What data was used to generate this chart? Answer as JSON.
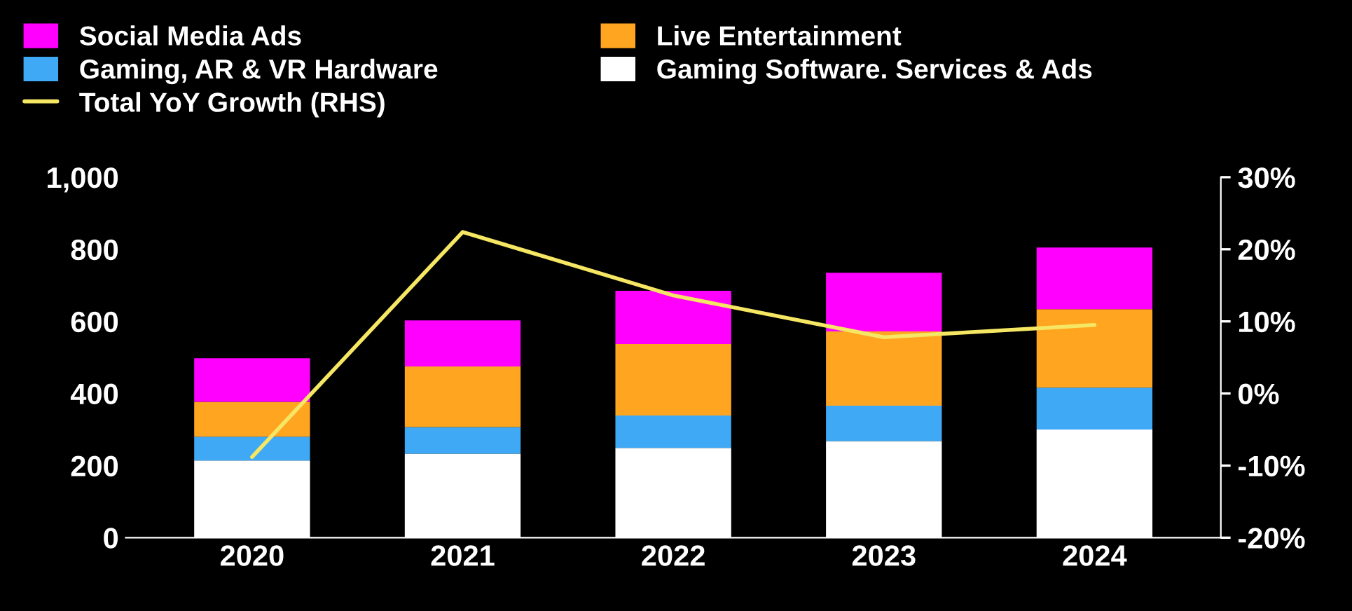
{
  "chart_data": {
    "type": "bar",
    "stacked": true,
    "legend": "top",
    "grid": false,
    "categories": [
      "2020",
      "2021",
      "2022",
      "2023",
      "2024"
    ],
    "series": [
      {
        "name": "Gaming Software. Services & Ads",
        "color": "#ffffff",
        "values": [
          214,
          233,
          249,
          268,
          300
        ]
      },
      {
        "name": "Gaming, AR & VR Hardware",
        "color": "#3fa9f5",
        "values": [
          66,
          74,
          90,
          98,
          116
        ]
      },
      {
        "name": "Live Entertainment",
        "color": "#ffa51f",
        "values": [
          97,
          168,
          198,
          206,
          218
        ]
      },
      {
        "name": "Social Media Ads",
        "color": "#ff00ff",
        "values": [
          121,
          128,
          148,
          163,
          171
        ]
      },
      {
        "name": "Total YoY Growth (RHS)",
        "type": "line",
        "axis": "y2",
        "color": "#f5e663",
        "values": [
          -8.8,
          22.4,
          13.6,
          7.8,
          9.5
        ]
      }
    ],
    "ylim": [
      0,
      1000
    ],
    "yticks": [
      0,
      200,
      400,
      600,
      800,
      {
        "value": 1000,
        "label": "1,000"
      }
    ],
    "y2lim": [
      -20,
      30
    ],
    "y2ticks": [
      {
        "value": -20,
        "label": "-20%"
      },
      {
        "value": -10,
        "label": "-10%"
      },
      {
        "value": 0,
        "label": "0%"
      },
      {
        "value": 10,
        "label": "10%"
      },
      {
        "value": 20,
        "label": "20%"
      },
      {
        "value": 30,
        "label": "30%"
      }
    ]
  }
}
